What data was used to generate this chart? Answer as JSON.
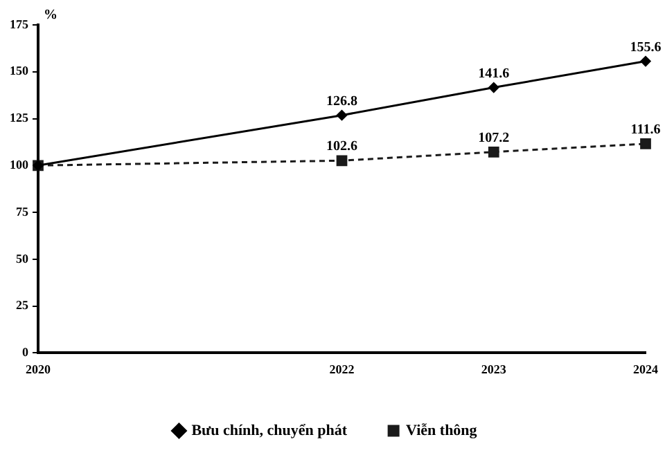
{
  "chart_data": {
    "type": "line",
    "ylabel": "%",
    "categories": [
      "2020",
      null,
      "2022",
      "2023",
      "2024"
    ],
    "series": [
      {
        "name": "Bưu chính, chuyển phát",
        "color": "#000000",
        "values": [
          100,
          null,
          126.8,
          141.6,
          155.6
        ],
        "value_labels": [
          null,
          null,
          "126.8",
          "141.6",
          "155.6"
        ],
        "marker": "diamond",
        "line_style": "solid"
      },
      {
        "name": "Viễn thông",
        "color": "#1a1a1a",
        "values": [
          100,
          null,
          102.6,
          107.2,
          111.6
        ],
        "value_labels": [
          null,
          null,
          "102.6",
          "107.2",
          "111.6"
        ],
        "marker": "square",
        "line_style": "dashed"
      }
    ],
    "ylim": [
      0,
      175
    ],
    "yticks": [
      0,
      25,
      50,
      75,
      100,
      125,
      150,
      175
    ],
    "grid": false,
    "legend": "bottom"
  }
}
